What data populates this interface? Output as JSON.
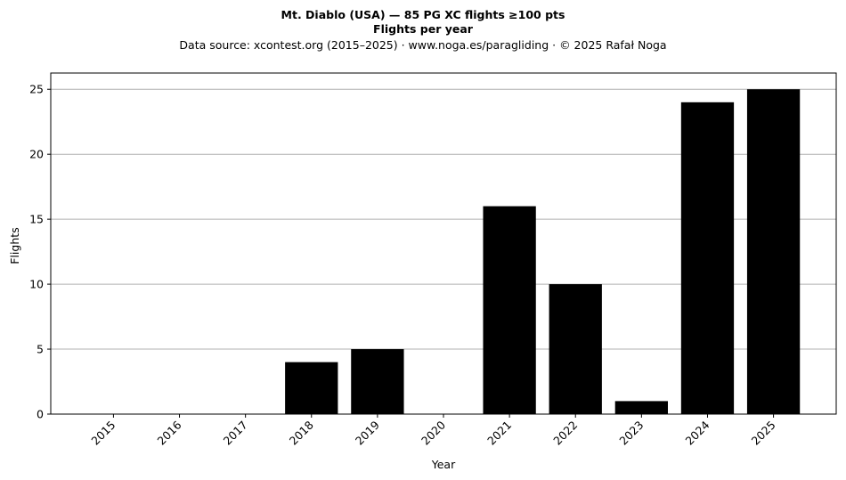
{
  "chart_data": {
    "type": "bar",
    "title": "Mt. Diablo (USA)  —  85 PG XC flights ≥100 pts",
    "subtitle": "Flights per year",
    "source": "Data source: xcontest.org (2015–2025)  ·  www.noga.es/paragliding  ·  © 2025 Rafał Noga",
    "xlabel": "Year",
    "ylabel": "Flights",
    "categories": [
      "2015",
      "2016",
      "2017",
      "2018",
      "2019",
      "2020",
      "2021",
      "2022",
      "2023",
      "2024",
      "2025"
    ],
    "values": [
      0,
      0,
      0,
      4,
      5,
      0,
      16,
      10,
      1,
      24,
      25
    ],
    "ylim": [
      0,
      26.25
    ],
    "yticks": [
      0,
      5,
      10,
      15,
      20,
      25
    ],
    "grid": "y",
    "bar_color": "#000000",
    "grid_color": "#b0b0b0"
  }
}
